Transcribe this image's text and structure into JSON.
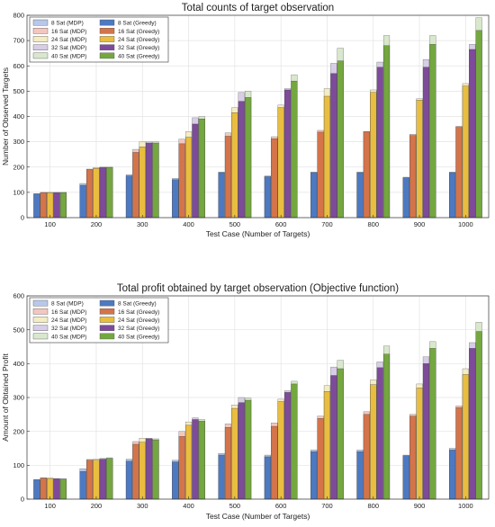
{
  "chart_data": [
    {
      "type": "bar",
      "title": "Total counts of target observation",
      "xlabel": "Test Case (Number of Targets)",
      "ylabel": "Number of Observed Targets",
      "ylim": [
        0,
        800
      ],
      "yticks": [
        0,
        100,
        200,
        300,
        400,
        500,
        600,
        700,
        800
      ],
      "categories": [
        "100",
        "200",
        "300",
        "400",
        "500",
        "600",
        "700",
        "800",
        "900",
        "1000"
      ],
      "grid": true,
      "legend_location": "top-left",
      "legend_entries": [
        "8 Sat (MDP)",
        "8 Sat (Greedy)",
        "16 Sat (MDP)",
        "16 Sat (Greedy)",
        "24 Sat (MDP)",
        "24 Sat (Greedy)",
        "32 Sat (MDP)",
        "32 Sat (Greedy)",
        "40 Sat (MDP)",
        "40 Sat (Greedy)"
      ],
      "series": [
        {
          "name": "8 Sat",
          "mdp": [
            95,
            135,
            170,
            155,
            180,
            165,
            180,
            180,
            160,
            180
          ],
          "greedy": [
            93,
            128,
            165,
            150,
            178,
            162,
            178,
            178,
            158,
            178
          ]
        },
        {
          "name": "16 Sat",
          "mdp": [
            100,
            192,
            270,
            310,
            335,
            320,
            345,
            340,
            330,
            360
          ],
          "greedy": [
            99,
            190,
            258,
            292,
            322,
            312,
            338,
            340,
            325,
            360
          ]
        },
        {
          "name": "24 Sat",
          "mdp": [
            100,
            198,
            300,
            340,
            435,
            445,
            510,
            505,
            470,
            530
          ],
          "greedy": [
            99,
            195,
            280,
            318,
            415,
            435,
            480,
            495,
            465,
            520
          ]
        },
        {
          "name": "32 Sat",
          "mdp": [
            100,
            200,
            300,
            395,
            495,
            510,
            610,
            615,
            625,
            685
          ],
          "greedy": [
            99,
            198,
            295,
            370,
            460,
            505,
            570,
            595,
            595,
            665
          ]
        },
        {
          "name": "40 Sat",
          "mdp": [
            100,
            200,
            300,
            400,
            500,
            565,
            670,
            720,
            720,
            790
          ],
          "greedy": [
            99,
            198,
            295,
            390,
            475,
            540,
            620,
            680,
            685,
            740
          ]
        }
      ]
    },
    {
      "type": "bar",
      "title": "Total profit obtained by target observation (Objective function)",
      "xlabel": "Test Case (Number of Targets)",
      "ylabel": "Amount of Obtained Profit",
      "ylim": [
        0,
        600
      ],
      "yticks": [
        0,
        100,
        200,
        300,
        400,
        500,
        600
      ],
      "categories": [
        "100",
        "200",
        "300",
        "400",
        "500",
        "600",
        "700",
        "800",
        "900",
        "1000"
      ],
      "grid": true,
      "legend_location": "top-left",
      "legend_entries": [
        "8 Sat (MDP)",
        "8 Sat (Greedy)",
        "16 Sat (MDP)",
        "16 Sat (Greedy)",
        "24 Sat (MDP)",
        "24 Sat (Greedy)",
        "32 Sat (MDP)",
        "32 Sat (Greedy)",
        "40 Sat (MDP)",
        "40 Sat (Greedy)"
      ],
      "series": [
        {
          "name": "8 Sat",
          "mdp": [
            58,
            90,
            118,
            115,
            135,
            130,
            145,
            145,
            130,
            150
          ],
          "greedy": [
            57,
            82,
            112,
            110,
            130,
            125,
            140,
            140,
            128,
            145
          ]
        },
        {
          "name": "16 Sat",
          "mdp": [
            63,
            117,
            170,
            200,
            222,
            225,
            245,
            258,
            250,
            275
          ],
          "greedy": [
            62,
            115,
            162,
            185,
            212,
            215,
            238,
            250,
            245,
            270
          ]
        },
        {
          "name": "24 Sat",
          "mdp": [
            62,
            118,
            180,
            228,
            278,
            295,
            335,
            352,
            340,
            385
          ],
          "greedy": [
            61,
            115,
            168,
            218,
            268,
            288,
            318,
            338,
            328,
            368
          ]
        },
        {
          "name": "32 Sat",
          "mdp": [
            61,
            120,
            180,
            240,
            300,
            320,
            390,
            405,
            420,
            462
          ],
          "greedy": [
            60,
            118,
            178,
            235,
            285,
            315,
            365,
            388,
            400,
            445
          ]
        },
        {
          "name": "40 Sat",
          "mdp": [
            60,
            122,
            178,
            235,
            298,
            348,
            410,
            452,
            465,
            522
          ],
          "greedy": [
            59,
            120,
            175,
            230,
            292,
            340,
            385,
            428,
            445,
            495
          ]
        }
      ]
    }
  ],
  "colors": {
    "mdp": [
      "#b7c8ea",
      "#f3c7c0",
      "#f3ecc4",
      "#d7cde6",
      "#d9e7cd"
    ],
    "greedy": [
      "#4d79c2",
      "#d4744a",
      "#e9bd3f",
      "#7e4a9a",
      "#74a73f"
    ]
  }
}
